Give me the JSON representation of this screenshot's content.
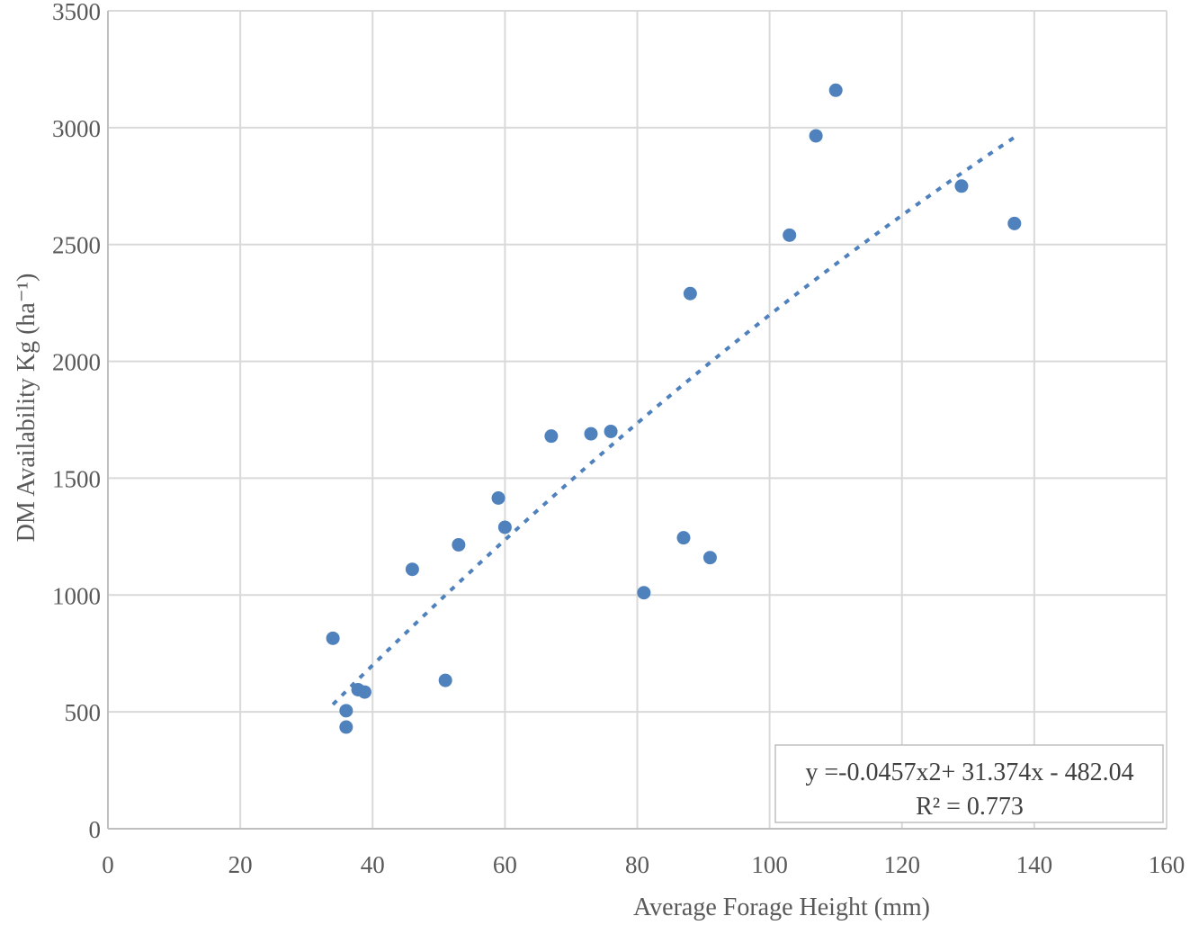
{
  "chart_data": {
    "type": "scatter",
    "title": "",
    "xlabel": "Average Forage Height (mm)",
    "ylabel": "DM Availability Kg (ha⁻¹)",
    "xlim": [
      0,
      160
    ],
    "ylim": [
      0,
      3500
    ],
    "xticks": [
      0,
      20,
      40,
      60,
      80,
      100,
      120,
      140,
      160
    ],
    "yticks": [
      0,
      500,
      1000,
      1500,
      2000,
      2500,
      3000,
      3500
    ],
    "grid": true,
    "legend": "none",
    "colors": {
      "points": "#4f81bd",
      "trendline": "#4f81bd",
      "grid": "#d9d9d9",
      "axis": "#bfbfbf"
    },
    "series": [
      {
        "points": [
          {
            "x": 34,
            "y": 815
          },
          {
            "x": 36,
            "y": 505
          },
          {
            "x": 36,
            "y": 435
          },
          {
            "x": 37.8,
            "y": 595
          },
          {
            "x": 38.8,
            "y": 585
          },
          {
            "x": 46,
            "y": 1110
          },
          {
            "x": 51,
            "y": 635
          },
          {
            "x": 53,
            "y": 1215
          },
          {
            "x": 59,
            "y": 1415
          },
          {
            "x": 60,
            "y": 1290
          },
          {
            "x": 67,
            "y": 1680
          },
          {
            "x": 73,
            "y": 1690
          },
          {
            "x": 76,
            "y": 1700
          },
          {
            "x": 81,
            "y": 1010
          },
          {
            "x": 87,
            "y": 1245
          },
          {
            "x": 88,
            "y": 2290
          },
          {
            "x": 91,
            "y": 1160
          },
          {
            "x": 103,
            "y": 2540
          },
          {
            "x": 107,
            "y": 2965
          },
          {
            "x": 110,
            "y": 3160
          },
          {
            "x": 129,
            "y": 2750
          },
          {
            "x": 137,
            "y": 2590
          }
        ]
      }
    ],
    "trendline": {
      "type": "polynomial",
      "x_range": [
        34,
        137
      ],
      "equation": "y =-0.0457x2+ 31.374x - 482.04",
      "r_squared": "R² = 0.773",
      "coefficients": {
        "a": -0.0457,
        "b": 31.374,
        "c": -482.04
      }
    }
  }
}
